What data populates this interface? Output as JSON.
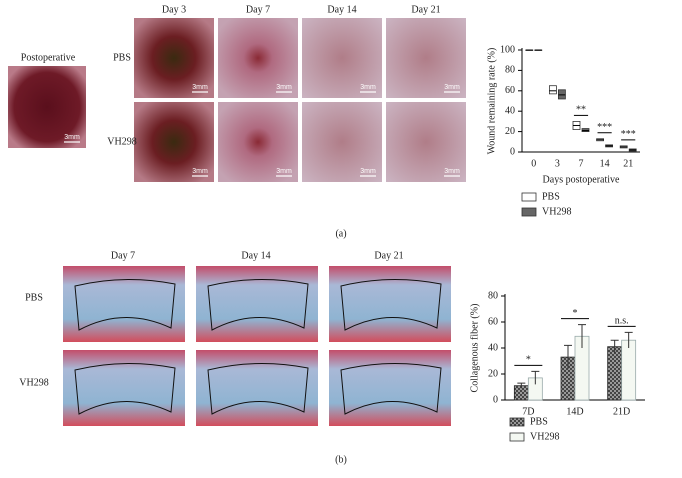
{
  "figure": {
    "panel_a": "(a)",
    "panel_b": "(b)",
    "postoperative": "Postoperative",
    "scale_bar": "3mm",
    "a_days": [
      "Day 3",
      "Day 7",
      "Day 14",
      "Day 21"
    ],
    "b_days": [
      "Day 7",
      "Day 14",
      "Day 21"
    ],
    "groups": [
      "PBS",
      "VH298"
    ]
  },
  "chart_data": [
    {
      "type": "box",
      "xlabel": "Days postoperative",
      "ylabel": "Wound remaining rate (%)",
      "categories": [
        "0",
        "3",
        "7",
        "14",
        "21"
      ],
      "ylim": [
        0,
        100
      ],
      "yticks": [
        0,
        20,
        40,
        60,
        80,
        100
      ],
      "series": [
        {
          "name": "PBS",
          "color": "#ffffff",
          "values": [
            100,
            60,
            26,
            12,
            5
          ],
          "low": [
            100,
            57,
            22,
            11,
            4
          ],
          "high": [
            100,
            65,
            30,
            13,
            6
          ]
        },
        {
          "name": "VH298",
          "color": "#666666",
          "values": [
            100,
            56,
            21,
            6,
            2
          ],
          "low": [
            100,
            52,
            20,
            5,
            1
          ],
          "high": [
            100,
            61,
            23,
            7,
            3
          ]
        }
      ],
      "annotations": [
        {
          "label": "**",
          "category": "7"
        },
        {
          "label": "***",
          "category": "14"
        },
        {
          "label": "***",
          "category": "21"
        }
      ]
    },
    {
      "type": "bar",
      "ylabel": "Collagenous fiber (%)",
      "categories": [
        "7D",
        "14D",
        "21D"
      ],
      "ylim": [
        0,
        80
      ],
      "yticks": [
        0,
        20,
        40,
        60,
        80
      ],
      "series": [
        {
          "name": "PBS",
          "color": "#333333",
          "values": [
            11,
            33,
            41
          ],
          "errors": [
            2,
            9,
            5
          ]
        },
        {
          "name": "VH298",
          "color": "#f4f8f2",
          "values": [
            17,
            49,
            46
          ],
          "errors": [
            5,
            9,
            6
          ]
        }
      ],
      "annotations": [
        {
          "label": "*",
          "category": "7D"
        },
        {
          "label": "*",
          "category": "14D"
        },
        {
          "label": "n.s.",
          "category": "21D"
        }
      ]
    }
  ]
}
